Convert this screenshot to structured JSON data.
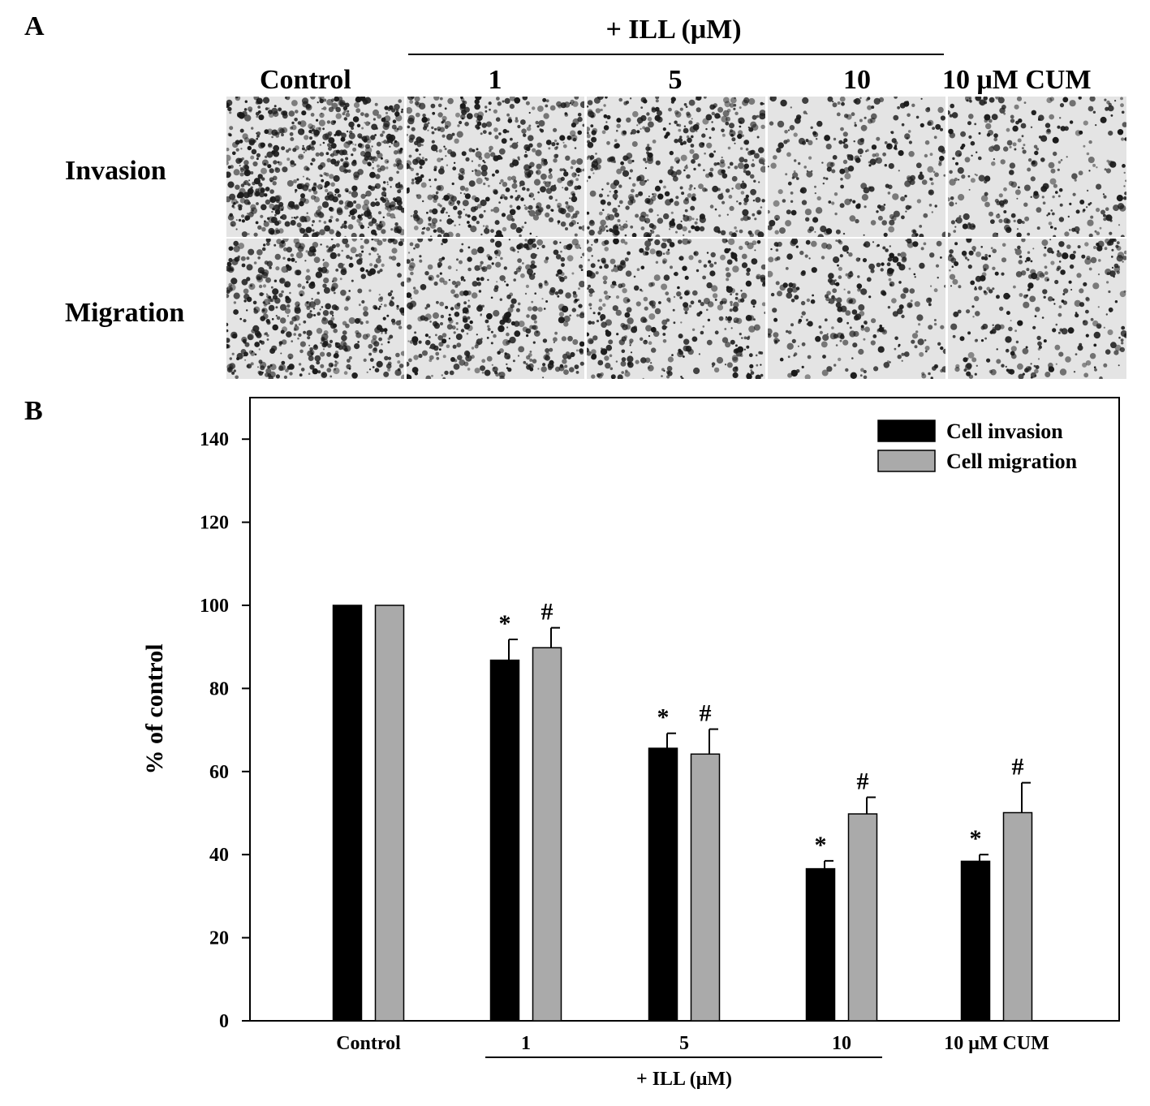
{
  "panel_a": {
    "letter": "A",
    "treatment_group_label": "+ ILL (μM)",
    "column_headers": [
      "Control",
      "1",
      "5",
      "10",
      "10 μM CUM"
    ],
    "row_labels": [
      "Invasion",
      "Migration"
    ],
    "micrograph_density": {
      "invasion": [
        1.0,
        0.72,
        0.68,
        0.4,
        0.42
      ],
      "migration": [
        0.75,
        0.62,
        0.56,
        0.42,
        0.45
      ]
    },
    "micrograph_colors": {
      "background": "#e4e4e4",
      "stain": "#1a1a1a"
    }
  },
  "panel_b": {
    "letter": "B"
  },
  "chart_data": {
    "type": "bar",
    "categories": [
      "Control",
      "1",
      "5",
      "10",
      "10 μM CUM"
    ],
    "series": [
      {
        "name": "Cell invasion",
        "color": "#000000",
        "values": [
          100,
          86.8,
          65.6,
          36.6,
          38.4
        ],
        "errors": [
          0,
          5.0,
          3.6,
          1.9,
          1.6
        ],
        "markers": [
          "",
          "*",
          "*",
          "*",
          "*"
        ]
      },
      {
        "name": "Cell migration",
        "color": "#aaaaaa",
        "values": [
          100,
          89.8,
          64.2,
          49.8,
          50.1
        ],
        "errors": [
          0,
          4.8,
          6.0,
          4.0,
          7.2
        ],
        "markers": [
          "",
          "#",
          "#",
          "#",
          "#"
        ]
      }
    ],
    "ylabel": "% of control",
    "yticks": [
      0,
      20,
      40,
      60,
      80,
      100,
      120,
      140
    ],
    "ylim": [
      0,
      150
    ],
    "group_label": "+ ILL (μM)",
    "grouped_categories": [
      "1",
      "5",
      "10"
    ],
    "legend_position": "top-right",
    "grid": false
  }
}
